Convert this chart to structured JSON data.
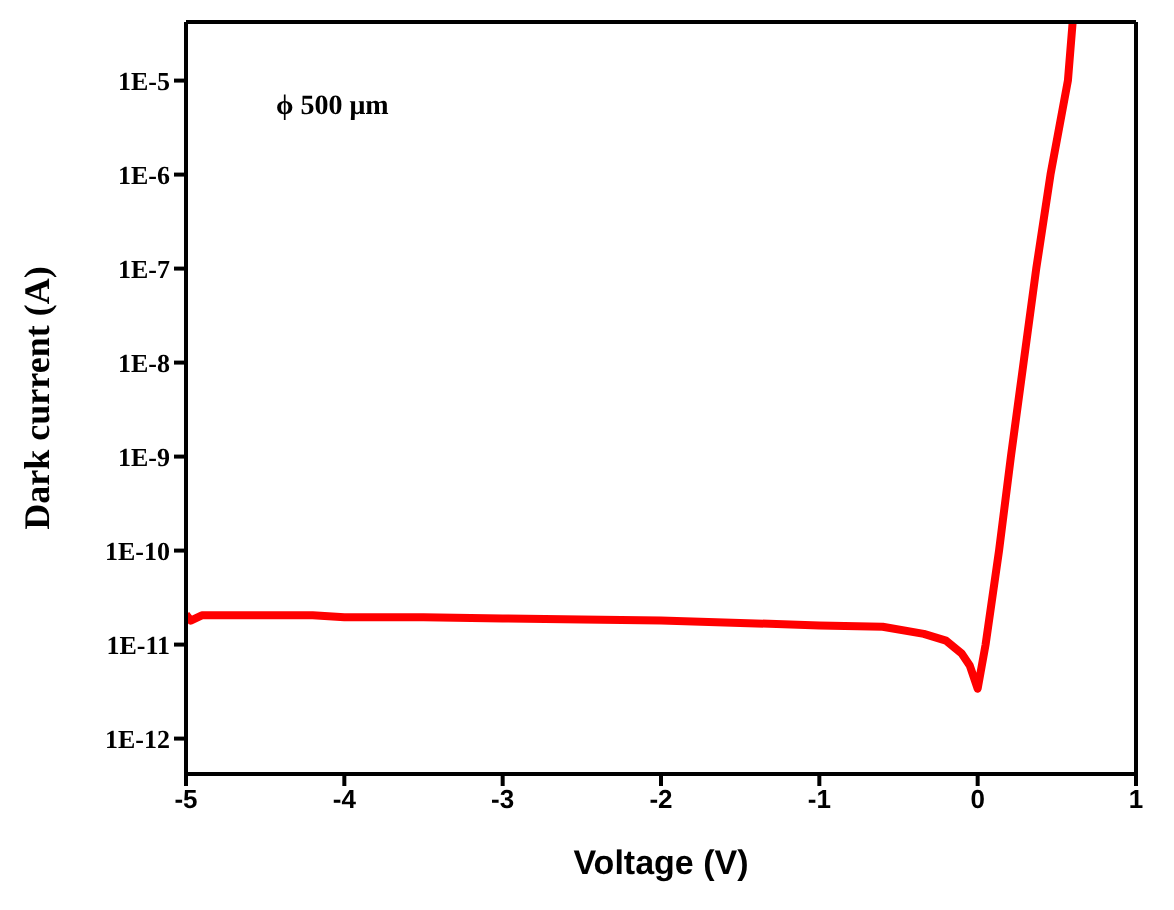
{
  "chart_data": {
    "type": "line",
    "xlabel": "Voltage (V)",
    "ylabel": "Dark current (A)",
    "annotations": [
      "ϕ 500 μm"
    ],
    "log": "y",
    "marker": "none",
    "line_style": "solid",
    "xlim": [
      -5,
      1
    ],
    "xticks": [
      -5,
      -4,
      -3,
      -2,
      -1,
      0,
      1
    ],
    "ylim": [
      4.2e-13,
      4.2e-05
    ],
    "yticks": [
      {
        "value": 1e-12,
        "label": "1E-12"
      },
      {
        "value": 1e-11,
        "label": "1E-11"
      },
      {
        "value": 1e-10,
        "label": "1E-10"
      },
      {
        "value": 1e-09,
        "label": "1E-9"
      },
      {
        "value": 1e-08,
        "label": "1E-8"
      },
      {
        "value": 1e-07,
        "label": "1E-7"
      },
      {
        "value": 1e-06,
        "label": "1E-6"
      },
      {
        "value": 1e-05,
        "label": "1E-5"
      }
    ],
    "series": [
      {
        "color": "#ff0000",
        "x": [
          -5,
          -4.97,
          -4.9,
          -4.5,
          -4.2,
          -4,
          -3.5,
          -3,
          -2.5,
          -2,
          -1.5,
          -1,
          -0.6,
          -0.34,
          -0.2,
          -0.1,
          -0.05,
          0,
          0.05,
          0.135,
          0.21,
          0.29,
          0.37,
          0.46,
          0.57,
          0.6
        ],
        "values": [
          2.1e-11,
          1.8e-11,
          2.05e-11,
          2.05e-11,
          2.05e-11,
          1.95e-11,
          1.95e-11,
          1.9e-11,
          1.85e-11,
          1.8e-11,
          1.7e-11,
          1.6e-11,
          1.55e-11,
          1.3e-11,
          1.1e-11,
          8e-12,
          6e-12,
          3.4e-12,
          1e-11,
          1e-10,
          1e-09,
          1e-08,
          1e-07,
          1e-06,
          1e-05,
          4.2e-05
        ]
      }
    ]
  }
}
